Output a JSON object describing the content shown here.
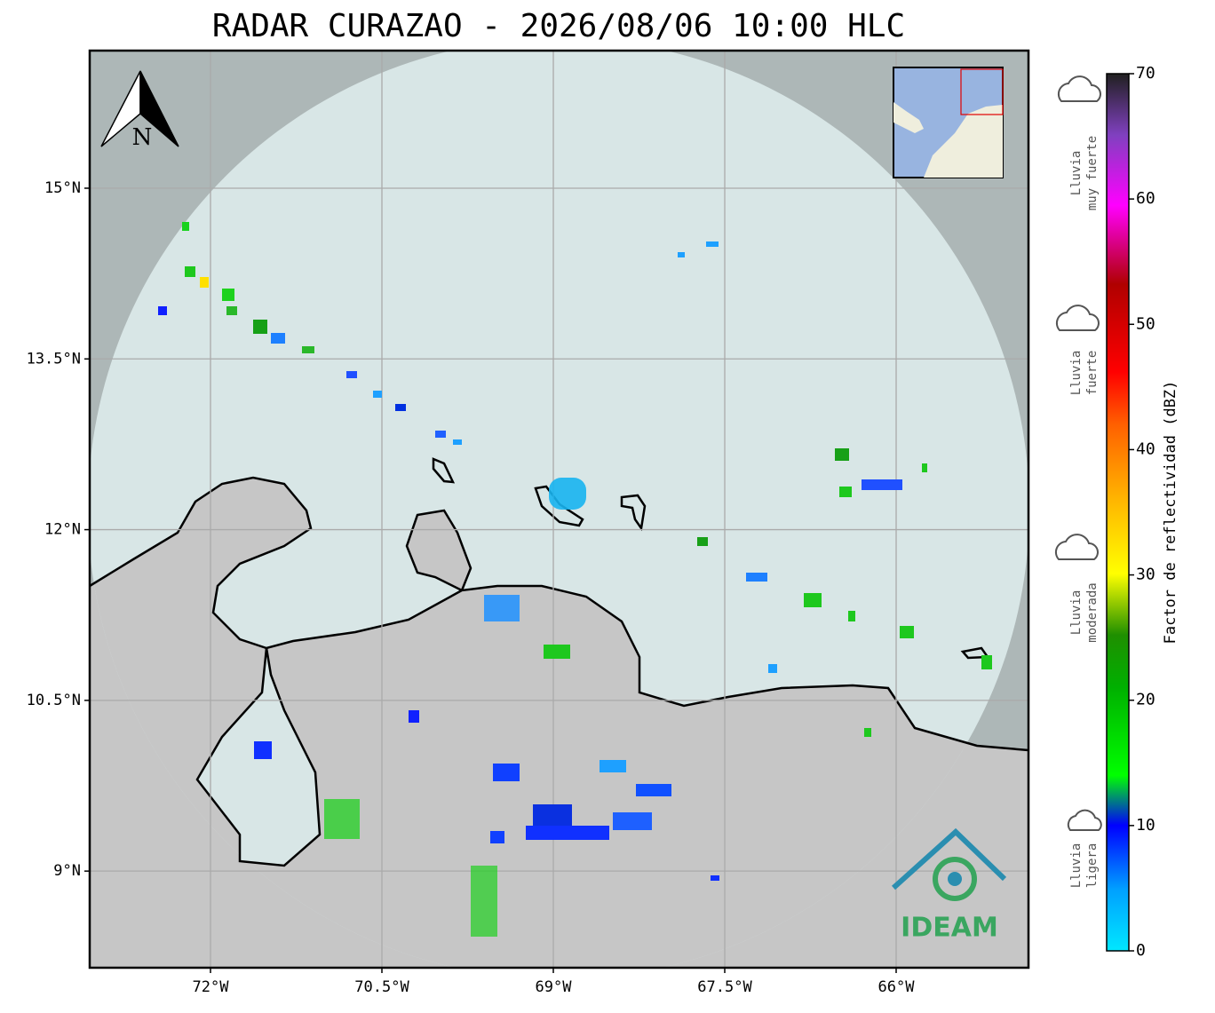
{
  "title": "RADAR CURAZAO - 2026/08/06 10:00 HLC",
  "map": {
    "lon_range": [
      -73.057,
      -64.842
    ],
    "lat_range": [
      8.151,
      16.209
    ],
    "lon_ticks": [
      {
        "value": -72,
        "label": "72°W"
      },
      {
        "value": -70.5,
        "label": "70.5°W"
      },
      {
        "value": -69,
        "label": "69°W"
      },
      {
        "value": -67.5,
        "label": "67.5°W"
      },
      {
        "value": -66,
        "label": "66°W"
      }
    ],
    "lat_ticks": [
      {
        "value": 15,
        "label": "15°N"
      },
      {
        "value": 13.5,
        "label": "13.5°N"
      },
      {
        "value": 12,
        "label": "12°N"
      },
      {
        "value": 10.5,
        "label": "10.5°N"
      },
      {
        "value": 9,
        "label": "9°N"
      }
    ],
    "north_label": "N",
    "logo_text": "IDEAM"
  },
  "colorbar": {
    "label": "Factor de reflectividad (dBZ)",
    "range": [
      0,
      70
    ],
    "ticks": [
      0,
      10,
      20,
      30,
      40,
      50,
      60,
      70
    ]
  },
  "intensity_labels": [
    [
      "Lluvia",
      "muy fuerte"
    ],
    [
      "Lluvia",
      "fuerte"
    ],
    [
      "Lluvia",
      "moderada"
    ],
    [
      "Lluvia",
      "ligera"
    ]
  ]
}
